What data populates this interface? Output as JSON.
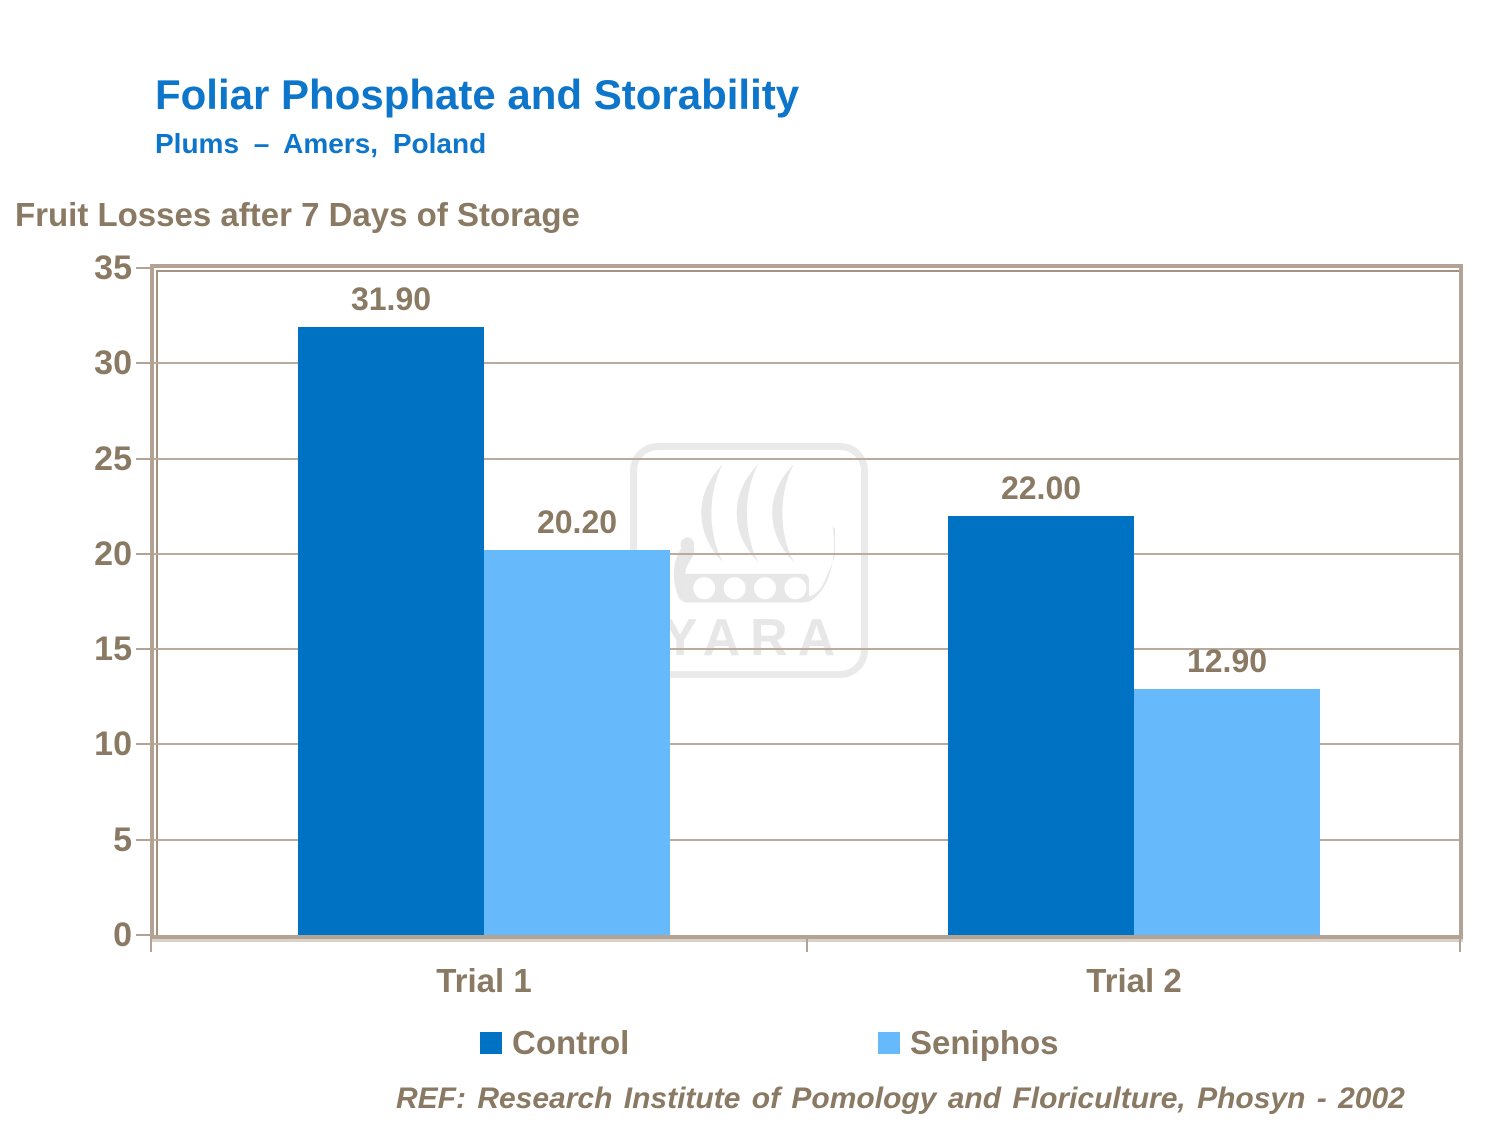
{
  "slide": {
    "title": "Foliar Phosphate and Storability",
    "subtitle": "Plums – Amers, Poland",
    "chart_heading": "Fruit Losses after 7 Days of Storage",
    "footer": "REF: Research Institute of Pomology and Floriculture, Phosyn - 2002"
  },
  "watermark": {
    "text": "YARA",
    "icon": "viking-ship"
  },
  "colors": {
    "title_blue": "#0d75ca",
    "control_blue": "#0072c4",
    "seniphos_blue": "#66b9fb",
    "text_brown": "#8a7a64",
    "axis_tan": "#b2a395",
    "grid_tan": "#b9ab9d",
    "watermark_gray": "#e7e7e7"
  },
  "chart_data": {
    "type": "bar",
    "title": "Fruit Losses after 7 Days of Storage",
    "categories": [
      "Trial 1",
      "Trial 2"
    ],
    "series": [
      {
        "name": "Control",
        "color": "#0072c4",
        "values": [
          31.9,
          22.0
        ],
        "labels": [
          "31.90",
          "22.00"
        ]
      },
      {
        "name": "Seniphos",
        "color": "#66b9fb",
        "values": [
          20.2,
          12.9
        ],
        "labels": [
          "20.20",
          "12.90"
        ]
      }
    ],
    "xlabel": "",
    "ylabel": "",
    "ylim": [
      0,
      35
    ],
    "yticks": [
      0,
      5,
      10,
      15,
      20,
      25,
      30,
      35
    ],
    "ytick_labels": [
      "0",
      "5",
      "10",
      "15",
      "20",
      "25",
      "30",
      "35"
    ],
    "grid": true,
    "legend_position": "bottom"
  }
}
